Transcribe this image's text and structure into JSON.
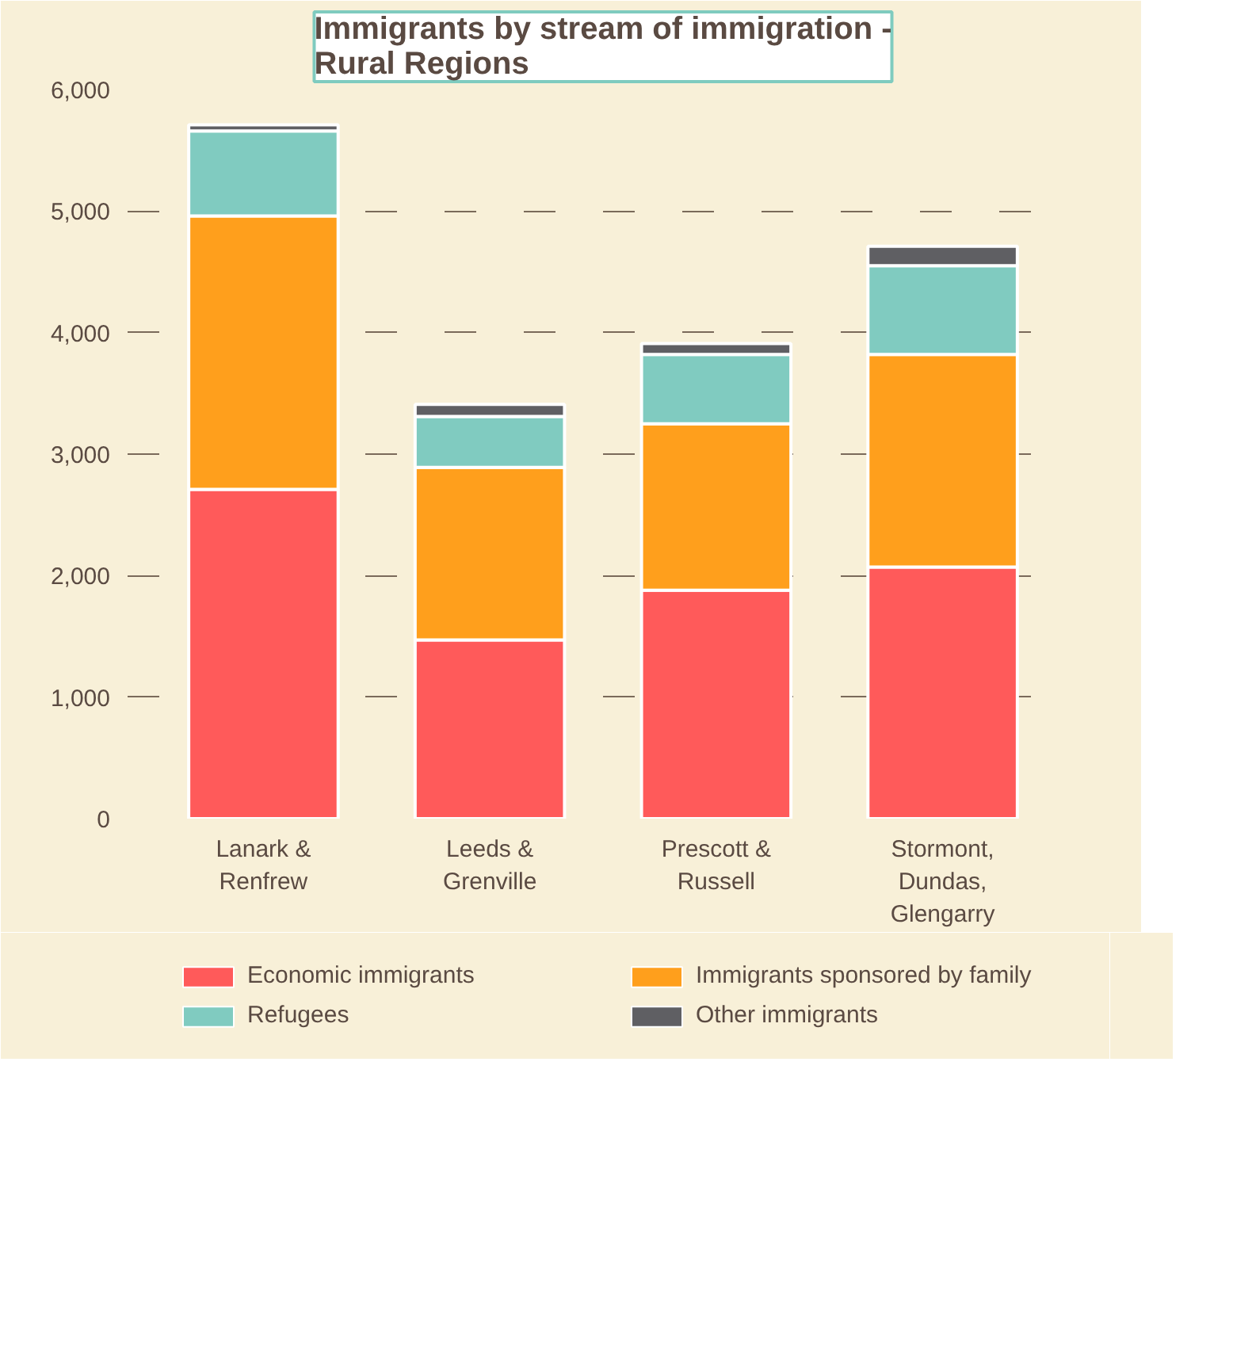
{
  "chart_data": {
    "type": "bar",
    "stacked": true,
    "title": "Immigrants by stream of immigration -\nRural Regions",
    "categories": [
      "Lanark &\nRenfrew",
      "Leeds &\nGrenville",
      "Prescott &\nRussell",
      "Stormont,\nDundas,\nGlengarry"
    ],
    "series": [
      {
        "name": "Economic immigrants",
        "color": "#ff5a5a",
        "values": [
          2710,
          1470,
          1880,
          2070
        ]
      },
      {
        "name": "Immigrants sponsored by family",
        "color": "#ff9f1c",
        "values": [
          2250,
          1420,
          1370,
          1750
        ]
      },
      {
        "name": "Refugees",
        "color": "#80cbc0",
        "values": [
          700,
          420,
          570,
          730
        ]
      },
      {
        "name": "Other immigrants",
        "color": "#5f5f63",
        "values": [
          50,
          100,
          90,
          160
        ]
      }
    ],
    "ylim": [
      0,
      6000
    ],
    "yticks": [
      {
        "value": 0,
        "label": "0"
      },
      {
        "value": 1000,
        "label": "1,000"
      },
      {
        "value": 2000,
        "label": "2,000"
      },
      {
        "value": 3000,
        "label": "3,000"
      },
      {
        "value": 4000,
        "label": "4,000"
      },
      {
        "value": 5000,
        "label": "5,000"
      },
      {
        "value": 6000,
        "label": "6,000"
      }
    ],
    "grid": "y",
    "legend": "bottom"
  }
}
